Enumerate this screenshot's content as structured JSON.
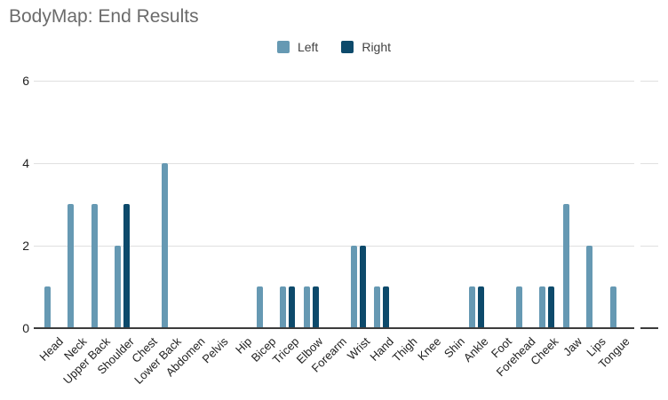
{
  "title": "BodyMap: End Results",
  "colors": {
    "background": "#ffffff",
    "title": "#6b6b6b",
    "grid": "#e0e0e0",
    "axis": "#3c3c3c",
    "tick_label": "#212121",
    "legend_label": "#424242",
    "series_left": "#6699b3",
    "series_right": "#0d4a6b"
  },
  "chart_data": {
    "type": "bar",
    "title": "BodyMap: End Results",
    "xlabel": "",
    "ylabel": "",
    "ylim": [
      0,
      6
    ],
    "yticks": [
      0,
      2,
      4,
      6
    ],
    "grid": "horizontal",
    "legend_position": "top-center",
    "categories": [
      "Head",
      "Neck",
      "Upper Back",
      "Shoulder",
      "Chest",
      "Lower Back",
      "Abdomen",
      "Pelvis",
      "Hip",
      "Bicep",
      "Tricep",
      "Elbow",
      "Forearm",
      "Wrist",
      "Hand",
      "Thigh",
      "Knee",
      "Shin",
      "Ankle",
      "Foot",
      "Forehead",
      "Cheek",
      "Jaw",
      "Lips",
      "Tongue"
    ],
    "series": [
      {
        "name": "Left",
        "color": "#6699b3",
        "values": [
          1,
          3,
          3,
          2,
          0,
          4,
          0,
          0,
          0,
          1,
          1,
          1,
          0,
          2,
          1,
          0,
          0,
          0,
          1,
          0,
          1,
          1,
          3,
          2,
          1
        ]
      },
      {
        "name": "Right",
        "color": "#0d4a6b",
        "values": [
          0,
          0,
          0,
          3,
          0,
          0,
          0,
          0,
          0,
          0,
          1,
          1,
          0,
          2,
          1,
          0,
          0,
          0,
          1,
          0,
          0,
          1,
          0,
          0,
          0
        ]
      }
    ]
  }
}
